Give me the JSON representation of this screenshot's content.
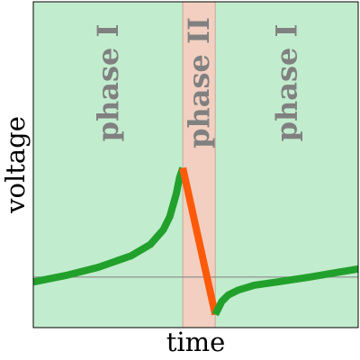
{
  "chart_data": {
    "type": "line",
    "xlabel": "time",
    "ylabel": "voltage",
    "xlim": [
      0,
      1
    ],
    "ylim": [
      0,
      1
    ],
    "grid": false,
    "x_ticks": [],
    "y_ticks": [],
    "reference_line_y": 0.155,
    "phases": [
      {
        "label": "phase I",
        "x_start": 0.0,
        "x_end": 0.46,
        "color": "#c2ecce"
      },
      {
        "label": "phase II",
        "x_start": 0.46,
        "x_end": 0.56,
        "color": "#f2cfc0"
      },
      {
        "label": "phase I",
        "x_start": 0.56,
        "x_end": 1.0,
        "color": "#c2ecce"
      }
    ],
    "series": [
      {
        "color": "#22a02c",
        "x": [
          0.0,
          0.1,
          0.2,
          0.3,
          0.36,
          0.4,
          0.42,
          0.44,
          0.45,
          0.46
        ],
        "y": [
          0.14,
          0.16,
          0.185,
          0.22,
          0.255,
          0.3,
          0.34,
          0.41,
          0.46,
          0.49
        ]
      },
      {
        "color": "#ff5a0a",
        "x": [
          0.46,
          0.56
        ],
        "y": [
          0.49,
          0.04
        ]
      },
      {
        "color": "#22a02c",
        "x": [
          0.56,
          0.57,
          0.58,
          0.6,
          0.63,
          0.68,
          0.75,
          0.85,
          1.0
        ],
        "y": [
          0.04,
          0.06,
          0.08,
          0.1,
          0.115,
          0.13,
          0.14,
          0.155,
          0.18
        ]
      }
    ]
  }
}
